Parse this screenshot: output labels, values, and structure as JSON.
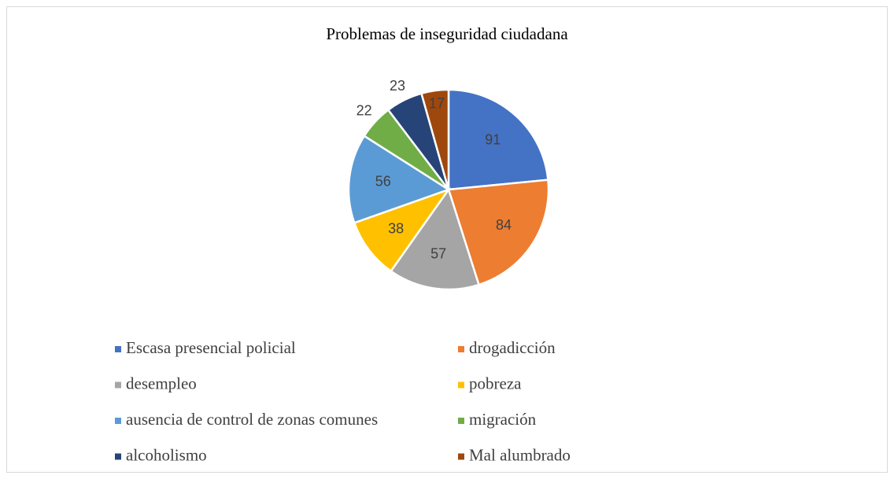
{
  "chart_data": {
    "type": "pie",
    "title": "Problemas de inseguridad ciudadana",
    "categories": [
      "Escasa presencial policial",
      "drogadicción",
      "desempleo",
      "pobreza",
      "ausencia de control de zonas comunes",
      "migración",
      "alcoholismo",
      "Mal alumbrado"
    ],
    "values": [
      91,
      84,
      57,
      38,
      56,
      22,
      23,
      17
    ],
    "colors": [
      "#4472c4",
      "#ed7d31",
      "#a5a5a5",
      "#ffc000",
      "#5b9bd5",
      "#70ad47",
      "#264478",
      "#9e480e"
    ],
    "legend": "bottom"
  }
}
